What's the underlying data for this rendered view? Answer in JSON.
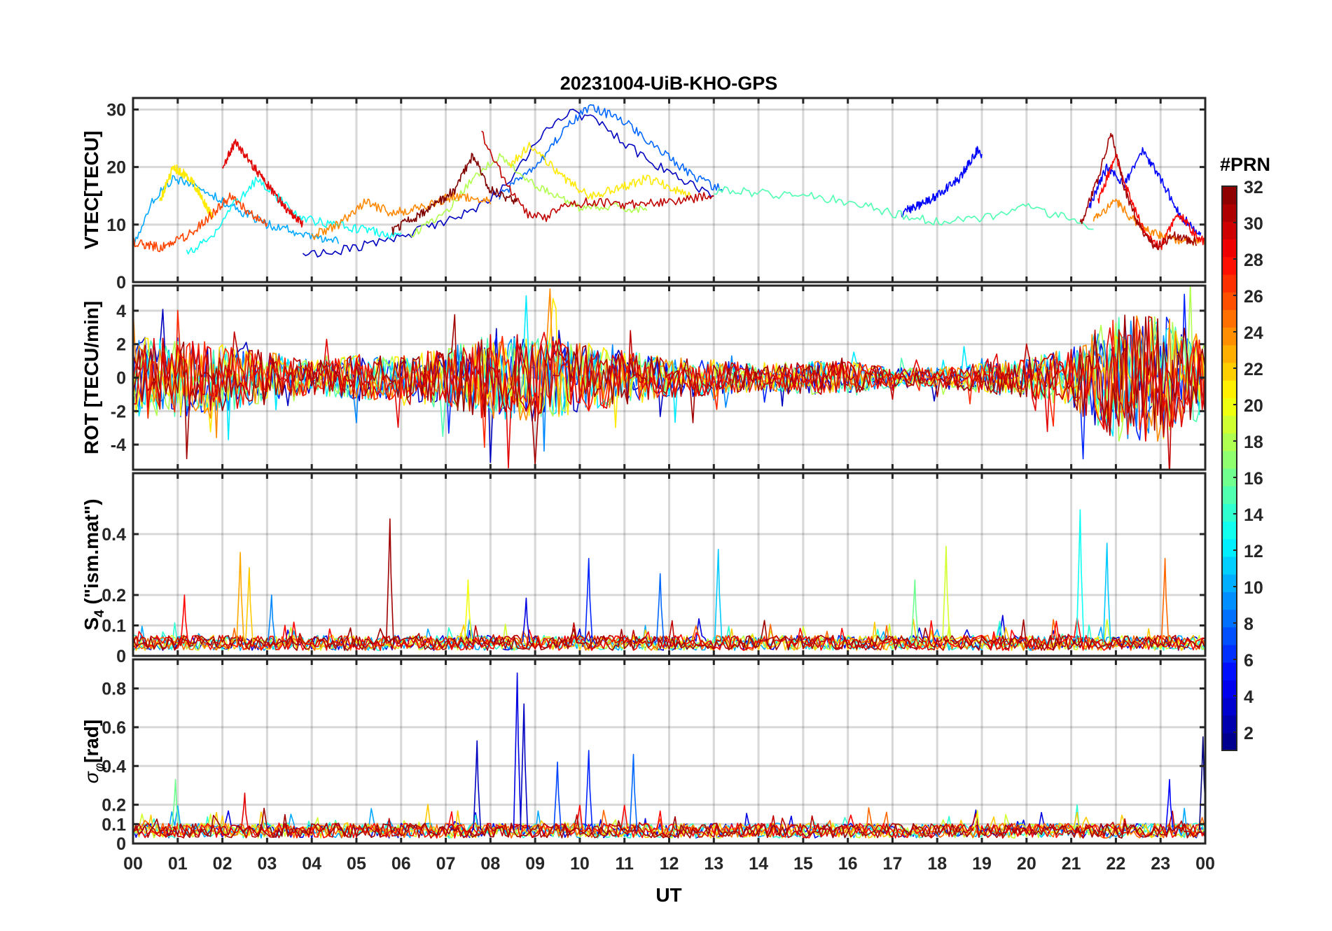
{
  "chart_data": {
    "type": "line",
    "title": "20231004-UiB-KHO-GPS",
    "xlabel": "UT",
    "x_ticks": [
      "00",
      "01",
      "02",
      "03",
      "04",
      "05",
      "06",
      "07",
      "08",
      "09",
      "10",
      "11",
      "12",
      "13",
      "14",
      "15",
      "16",
      "17",
      "18",
      "19",
      "20",
      "21",
      "22",
      "23",
      "00"
    ],
    "xlim_hours": [
      0,
      24
    ],
    "grid": true,
    "colorbar": {
      "label": "#PRN",
      "range": [
        1,
        32
      ],
      "ticks": [
        "2",
        "4",
        "6",
        "8",
        "10",
        "12",
        "14",
        "16",
        "18",
        "20",
        "22",
        "24",
        "26",
        "28",
        "30",
        "32"
      ],
      "colormap": "jet",
      "placement": "right"
    },
    "panels": [
      {
        "id": "vtec",
        "ylabel": "VTEC[TECU]",
        "ylim": [
          0,
          32
        ],
        "y_ticks": [
          0,
          10,
          20,
          30
        ],
        "y_tick_labels": [
          "0",
          "10",
          "20",
          "30"
        ],
        "series": [
          {
            "prn": 3,
            "t": [
              3.8,
              5.0,
              6.0,
              6.8,
              7.6,
              8.4,
              9.2,
              9.8,
              10.4,
              11.0,
              11.8,
              12.5,
              13.0
            ],
            "v": [
              4.5,
              6.0,
              8.0,
              10.0,
              12.5,
              17.0,
              26.0,
              29.5,
              28.0,
              24.0,
              20.0,
              17.0,
              15.0
            ]
          },
          {
            "prn": 8,
            "t": [
              8.2,
              9.0,
              9.6,
              10.2,
              11.0,
              11.8,
              12.6,
              13.2
            ],
            "v": [
              15.0,
              20.0,
              26.0,
              30.5,
              28.0,
              23.0,
              18.0,
              16.0
            ]
          },
          {
            "prn": 5,
            "t": [
              17.2,
              17.9,
              18.5,
              18.9,
              19.0
            ],
            "v": [
              12.0,
              14.5,
              18.0,
              23.0,
              22.0
            ]
          },
          {
            "prn": 5,
            "t": [
              21.4,
              21.8,
              22.2,
              22.6,
              23.0,
              23.4,
              23.9
            ],
            "v": [
              13.0,
              20.0,
              17.0,
              23.0,
              18.0,
              12.0,
              8.0
            ]
          },
          {
            "prn": 10,
            "t": [
              0.0,
              0.4,
              0.9,
              1.4,
              2.0,
              2.5,
              3.0,
              3.5,
              4.0,
              4.6
            ],
            "v": [
              6.0,
              14.0,
              18.0,
              17.0,
              14.0,
              12.0,
              10.0,
              9.0,
              8.0,
              7.0
            ]
          },
          {
            "prn": 13,
            "t": [
              1.2,
              1.8,
              2.3,
              2.8,
              3.2,
              3.8,
              4.5,
              5.2,
              6.0
            ],
            "v": [
              5.0,
              8.0,
              14.0,
              18.0,
              15.0,
              11.0,
              10.0,
              9.0,
              8.0
            ]
          },
          {
            "prn": 15,
            "t": [
              13.0,
              14.0,
              15.0,
              16.0,
              17.0,
              18.0,
              19.0,
              20.0,
              21.0,
              21.5
            ],
            "v": [
              16.0,
              15.5,
              15.0,
              14.0,
              12.0,
              10.5,
              11.0,
              13.0,
              11.0,
              9.0
            ]
          },
          {
            "prn": 18,
            "t": [
              6.2,
              7.0,
              7.6,
              8.2,
              8.8,
              9.4,
              10.0,
              10.8,
              11.5
            ],
            "v": [
              8.0,
              12.0,
              18.0,
              22.0,
              18.0,
              15.0,
              13.0,
              13.0,
              12.5
            ]
          },
          {
            "prn": 21,
            "t": [
              0.6,
              0.9,
              1.3,
              1.8
            ],
            "v": [
              14.0,
              20.0,
              18.0,
              11.0
            ]
          },
          {
            "prn": 21,
            "t": [
              8.4,
              8.9,
              9.5,
              10.2,
              10.8,
              11.5,
              12.5
            ],
            "v": [
              20.0,
              24.0,
              19.0,
              15.0,
              16.0,
              18.0,
              15.0
            ]
          },
          {
            "prn": 24,
            "t": [
              4.0,
              4.6,
              5.2,
              5.8,
              6.4,
              7.2,
              8.0
            ],
            "v": [
              8.0,
              10.0,
              14.0,
              12.0,
              13.0,
              15.0,
              14.0
            ]
          },
          {
            "prn": 24,
            "t": [
              21.5,
              22.0,
              22.5,
              23.0,
              23.5,
              24.0
            ],
            "v": [
              11.0,
              14.0,
              10.0,
              8.0,
              7.0,
              7.0
            ]
          },
          {
            "prn": 26,
            "t": [
              0.0,
              0.6,
              1.2,
              1.8,
              2.2,
              2.6,
              3.0
            ],
            "v": [
              7.0,
              6.0,
              8.0,
              12.0,
              15.0,
              12.0,
              10.0
            ]
          },
          {
            "prn": 28,
            "t": [
              21.6,
              22.0,
              22.3,
              22.7,
              23.0,
              23.4,
              23.8,
              24.0
            ],
            "v": [
              14.0,
              22.0,
              15.0,
              8.0,
              6.0,
              12.0,
              8.0,
              7.0
            ]
          },
          {
            "prn": 29,
            "t": [
              2.0,
              2.3,
              2.6,
              3.0,
              3.4,
              3.8
            ],
            "v": [
              20.0,
              24.5,
              21.0,
              17.0,
              13.0,
              10.0
            ]
          },
          {
            "prn": 30,
            "t": [
              7.8,
              8.3,
              8.8,
              9.2,
              9.6,
              10.2,
              11.0,
              12.0,
              13.0
            ],
            "v": [
              26.0,
              18.0,
              12.0,
              11.0,
              13.0,
              14.0,
              13.5,
              14.0,
              15.0
            ]
          },
          {
            "prn": 31,
            "t": [
              21.2,
              21.6,
              21.9,
              22.2,
              22.5,
              22.9,
              23.3,
              23.8
            ],
            "v": [
              10.0,
              18.0,
              26.0,
              16.0,
              10.0,
              6.0,
              8.0,
              7.0
            ]
          },
          {
            "prn": 32,
            "t": [
              5.8,
              6.5,
              7.2,
              7.6,
              8.0,
              8.6
            ],
            "v": [
              9.0,
              12.0,
              16.0,
              22.0,
              16.0,
              14.0
            ]
          }
        ]
      },
      {
        "id": "rot",
        "ylabel": "ROT [TECU/min]",
        "ylim": [
          -5.5,
          5.5
        ],
        "y_ticks": [
          -4,
          -2,
          0,
          2,
          4
        ],
        "y_tick_labels": [
          "-4",
          "-2",
          "0",
          "2",
          "4"
        ],
        "envelope": {
          "t": [
            0,
            1,
            2,
            3,
            4,
            5,
            6,
            7,
            8,
            9,
            10,
            11,
            12,
            13,
            14,
            15,
            16,
            17,
            18,
            19,
            20,
            21,
            22,
            23,
            24
          ],
          "amp": [
            2.5,
            2.4,
            2.0,
            1.6,
            1.0,
            1.4,
            1.3,
            1.8,
            2.6,
            2.6,
            2.2,
            1.6,
            1.2,
            1.1,
            0.8,
            1.0,
            1.0,
            0.6,
            0.6,
            0.9,
            1.2,
            1.8,
            3.8,
            3.8,
            2.4
          ]
        }
      },
      {
        "id": "s4",
        "ylabel": "S4 (\"ism.mat\")",
        "ylabel_main": "S",
        "ylabel_sub": "4",
        "ylabel_rest": " (\"ism.mat\")",
        "ylim": [
          0,
          0.6
        ],
        "y_ticks": [
          0,
          0.1,
          0.2,
          0.4
        ],
        "y_tick_labels": [
          "0",
          "0.1",
          "0.2",
          "0.4"
        ],
        "peaks": [
          {
            "prn": 31,
            "t": 5.75,
            "v": 0.45
          },
          {
            "prn": 13,
            "t": 21.2,
            "v": 0.48
          },
          {
            "prn": 11,
            "t": 21.8,
            "v": 0.37
          },
          {
            "prn": 19,
            "t": 18.2,
            "v": 0.36
          },
          {
            "prn": 11,
            "t": 13.1,
            "v": 0.35
          },
          {
            "prn": 23,
            "t": 2.4,
            "v": 0.34
          },
          {
            "prn": 6,
            "t": 10.2,
            "v": 0.32
          },
          {
            "prn": 25,
            "t": 23.1,
            "v": 0.32
          },
          {
            "prn": 8,
            "t": 11.8,
            "v": 0.27
          },
          {
            "prn": 22,
            "t": 2.6,
            "v": 0.29
          },
          {
            "prn": 16,
            "t": 17.5,
            "v": 0.25
          },
          {
            "prn": 20,
            "t": 7.5,
            "v": 0.25
          },
          {
            "prn": 9,
            "t": 3.1,
            "v": 0.2
          },
          {
            "prn": 28,
            "t": 1.15,
            "v": 0.2
          },
          {
            "prn": 4,
            "t": 8.8,
            "v": 0.19
          }
        ]
      },
      {
        "id": "sigma_phi",
        "ylabel": "σφ[rad]",
        "ylabel_main": "σ",
        "ylabel_sub": "φ",
        "ylabel_rest": "[rad]",
        "ylim": [
          0,
          0.95
        ],
        "y_ticks": [
          0,
          0.1,
          0.2,
          0.4,
          0.6,
          0.8
        ],
        "y_tick_labels": [
          "0",
          "0.1",
          "0.2",
          "0.4",
          "0.6",
          "0.8"
        ],
        "peaks": [
          {
            "prn": 4,
            "t": 8.6,
            "v": 0.88
          },
          {
            "prn": 3,
            "t": 8.75,
            "v": 0.72
          },
          {
            "prn": 3,
            "t": 7.7,
            "v": 0.53
          },
          {
            "prn": 1,
            "t": 23.95,
            "v": 0.55
          },
          {
            "prn": 6,
            "t": 10.2,
            "v": 0.48
          },
          {
            "prn": 8,
            "t": 11.2,
            "v": 0.46
          },
          {
            "prn": 7,
            "t": 9.5,
            "v": 0.42
          },
          {
            "prn": 16,
            "t": 0.95,
            "v": 0.33
          },
          {
            "prn": 5,
            "t": 23.2,
            "v": 0.33
          },
          {
            "prn": 20,
            "t": 18.9,
            "v": 0.17
          },
          {
            "prn": 29,
            "t": 2.5,
            "v": 0.26
          }
        ]
      }
    ]
  }
}
